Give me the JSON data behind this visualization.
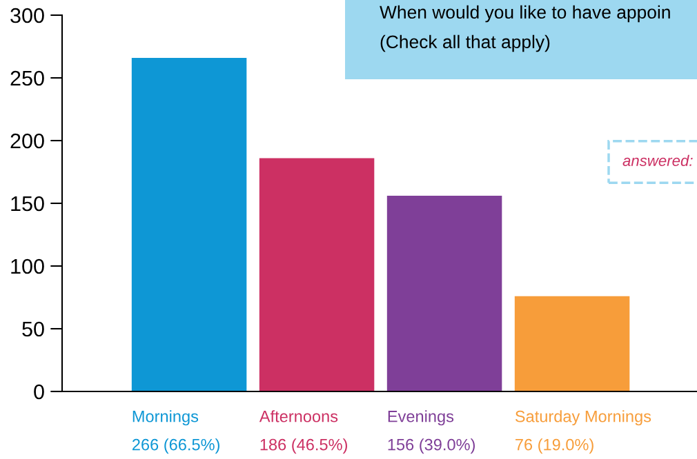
{
  "chart_data": {
    "type": "bar",
    "title": "When would you like to have appoin",
    "subtitle": "(Check all that apply)",
    "categories": [
      "Mornings",
      "Afternoons",
      "Evenings",
      "Saturday Mornings"
    ],
    "values": [
      266,
      186,
      156,
      76
    ],
    "colors": [
      "#0e97d5",
      "#cc3063",
      "#7f3f98",
      "#f79d3a"
    ],
    "value_labels": [
      "266 (66.5%)",
      "186 (46.5%)",
      "156 (39.0%)",
      "76 (19.0%)"
    ],
    "annotations": [
      "answered:"
    ],
    "ylim": [
      0,
      300
    ],
    "yticks": [
      0,
      50,
      100,
      150,
      200,
      250,
      300
    ],
    "grid": false
  }
}
